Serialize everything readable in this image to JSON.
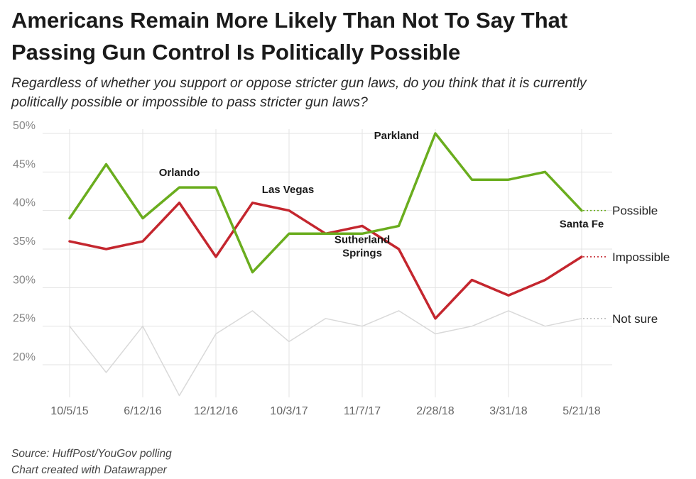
{
  "header": {
    "title_line1": "Americans Remain More Likely Than Not To Say That",
    "title_line2": "Passing Gun Control Is Politically Possible",
    "subtitle_line1": "Regardless of whether you support or oppose stricter gun laws, do you think that it is currently",
    "subtitle_line2": "politically possible or impossible to pass stricter gun laws?"
  },
  "footer": {
    "source": "Source: HuffPost/YouGov polling",
    "credit": "Chart created with Datawrapper"
  },
  "chart_data": {
    "type": "line",
    "title": "Americans Remain More Likely Than Not To Say That Passing Gun Control Is Politically Possible",
    "x_points": 15,
    "x_ticks": [
      {
        "index": 0,
        "label": "10/5/15"
      },
      {
        "index": 2,
        "label": "6/12/16"
      },
      {
        "index": 4,
        "label": "12/12/16"
      },
      {
        "index": 6,
        "label": "10/3/17"
      },
      {
        "index": 8,
        "label": "11/7/17"
      },
      {
        "index": 10,
        "label": "2/28/18"
      },
      {
        "index": 12,
        "label": "3/31/18"
      },
      {
        "index": 14,
        "label": "5/21/18"
      }
    ],
    "y_ticks": [
      {
        "value": 20,
        "label": "20%"
      },
      {
        "value": 25,
        "label": "25%"
      },
      {
        "value": 30,
        "label": "30%"
      },
      {
        "value": 35,
        "label": "35%"
      },
      {
        "value": 40,
        "label": "40%"
      },
      {
        "value": 45,
        "label": "45%"
      },
      {
        "value": 50,
        "label": "50%"
      }
    ],
    "ylim": [
      16,
      50
    ],
    "grid": true,
    "series": [
      {
        "key": "not_sure",
        "name": "Not sure",
        "color": "#d9d9d9",
        "values": [
          25,
          19,
          25,
          16,
          24,
          27,
          23,
          26,
          25,
          27,
          24,
          25,
          27,
          25,
          26
        ]
      },
      {
        "key": "impossible",
        "name": "Impossible",
        "color": "#c4262e",
        "values": [
          36,
          35,
          36,
          41,
          34,
          41,
          40,
          37,
          38,
          35,
          26,
          31,
          29,
          31,
          34
        ]
      },
      {
        "key": "possible",
        "name": "Possible",
        "color": "#6aad1e",
        "values": [
          39,
          46,
          39,
          43,
          43,
          32,
          37,
          37,
          37,
          38,
          50,
          44,
          44,
          45,
          40
        ]
      }
    ],
    "annotations": [
      {
        "lines": [
          "Orlando"
        ],
        "series": "possible",
        "index": 3,
        "placement": "above"
      },
      {
        "lines": [
          "Las Vegas"
        ],
        "series": "impossible",
        "index": 5,
        "placement": "above-right"
      },
      {
        "lines": [
          "Parkland"
        ],
        "series": "possible",
        "index": 10,
        "placement": "left"
      },
      {
        "lines": [
          "Sutherland",
          "Springs"
        ],
        "series": "impossible",
        "index": 8,
        "placement": "below"
      },
      {
        "lines": [
          "Santa Fe"
        ],
        "series": "possible",
        "index": 14,
        "placement": "below"
      }
    ]
  }
}
